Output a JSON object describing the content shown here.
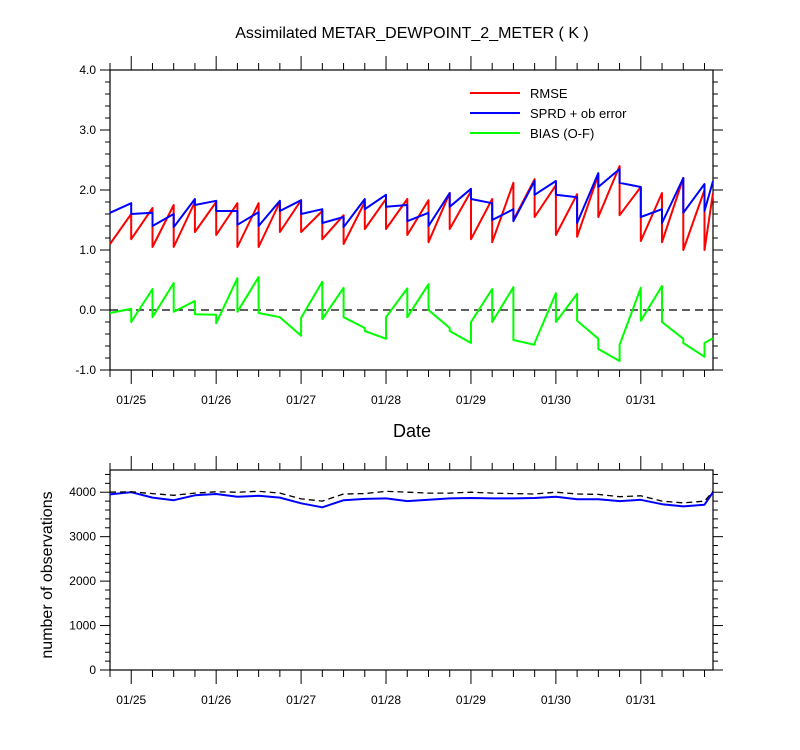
{
  "chart_data": [
    {
      "type": "line",
      "title": "Assimilated METAR_DEWPOINT_2_METER ( K )",
      "xlabel": "Date",
      "ylabel": "",
      "xlim": [
        0,
        7.1
      ],
      "ylim": [
        -1.0,
        4.0
      ],
      "yticks": [
        "-1.0",
        "0.0",
        "1.0",
        "2.0",
        "3.0",
        "4.0"
      ],
      "ytick_values": [
        -1,
        0,
        1,
        2,
        3,
        4
      ],
      "xtick_labels": [
        "01/25",
        "01/26",
        "01/27",
        "01/28",
        "01/29",
        "01/30",
        "01/31"
      ],
      "xtick_values": [
        0.25,
        1.25,
        2.25,
        3.25,
        4.25,
        5.25,
        6.25
      ],
      "x_minor_step": 0.25,
      "legend_position": "top-right",
      "reference_line": {
        "y": 0,
        "style": "dashed",
        "color": "#000000"
      },
      "series": [
        {
          "name": "RMSE",
          "color": "#ff0000",
          "x": [
            0.0,
            0.25,
            0.25,
            0.5,
            0.5,
            0.75,
            0.75,
            1.0,
            1.0,
            1.25,
            1.25,
            1.5,
            1.5,
            1.75,
            1.75,
            2.0,
            2.0,
            2.25,
            2.25,
            2.5,
            2.5,
            2.75,
            2.75,
            3.0,
            3.0,
            3.25,
            3.25,
            3.5,
            3.5,
            3.75,
            3.75,
            4.0,
            4.0,
            4.25,
            4.25,
            4.5,
            4.5,
            4.75,
            4.75,
            5.0,
            5.0,
            5.25,
            5.25,
            5.5,
            5.5,
            5.75,
            5.75,
            6.0,
            6.0,
            6.25,
            6.25,
            6.5,
            6.5,
            6.75,
            6.75,
            7.0,
            7.0,
            7.1
          ],
          "values": [
            1.1,
            1.6,
            1.18,
            1.7,
            1.05,
            1.75,
            1.05,
            1.8,
            1.3,
            1.8,
            1.25,
            1.78,
            1.05,
            1.78,
            1.05,
            1.8,
            1.3,
            1.83,
            1.3,
            1.65,
            1.18,
            1.58,
            1.1,
            1.8,
            1.35,
            1.85,
            1.35,
            1.85,
            1.25,
            1.83,
            1.13,
            1.95,
            1.35,
            1.98,
            1.18,
            1.85,
            1.13,
            2.12,
            1.5,
            2.18,
            1.55,
            2.08,
            1.25,
            1.93,
            1.22,
            2.25,
            1.55,
            2.4,
            1.58,
            2.05,
            1.15,
            1.95,
            1.13,
            2.2,
            1.0,
            2.0,
            1.0,
            1.95
          ]
        },
        {
          "name": "SPRD + ob error",
          "color": "#0000ff",
          "x": [
            0.0,
            0.25,
            0.25,
            0.5,
            0.5,
            0.75,
            0.75,
            1.0,
            1.0,
            1.25,
            1.25,
            1.5,
            1.5,
            1.75,
            1.75,
            2.0,
            2.0,
            2.25,
            2.25,
            2.5,
            2.5,
            2.75,
            2.75,
            3.0,
            3.0,
            3.25,
            3.25,
            3.5,
            3.5,
            3.75,
            3.75,
            4.0,
            4.0,
            4.25,
            4.25,
            4.5,
            4.5,
            4.75,
            4.75,
            5.0,
            5.0,
            5.25,
            5.25,
            5.5,
            5.5,
            5.75,
            5.75,
            6.0,
            6.0,
            6.25,
            6.25,
            6.5,
            6.5,
            6.75,
            6.75,
            7.0,
            7.0,
            7.1
          ],
          "values": [
            1.62,
            1.78,
            1.6,
            1.62,
            1.4,
            1.6,
            1.38,
            1.85,
            1.75,
            1.82,
            1.65,
            1.65,
            1.42,
            1.63,
            1.4,
            1.82,
            1.65,
            1.83,
            1.6,
            1.68,
            1.45,
            1.55,
            1.38,
            1.85,
            1.68,
            1.92,
            1.72,
            1.75,
            1.48,
            1.62,
            1.4,
            1.95,
            1.72,
            2.02,
            1.85,
            1.78,
            1.5,
            1.68,
            1.48,
            2.15,
            1.92,
            2.15,
            1.92,
            1.88,
            1.45,
            2.28,
            2.05,
            2.35,
            2.12,
            2.05,
            1.55,
            1.68,
            1.45,
            2.2,
            1.62,
            2.1,
            1.65,
            2.15
          ]
        },
        {
          "name": "BIAS (O-F)",
          "color": "#00ff00",
          "x": [
            0.0,
            0.25,
            0.25,
            0.5,
            0.5,
            0.75,
            0.75,
            1.0,
            1.0,
            1.25,
            1.25,
            1.5,
            1.5,
            1.75,
            1.75,
            2.0,
            2.0,
            2.25,
            2.25,
            2.5,
            2.5,
            2.75,
            2.75,
            3.0,
            3.0,
            3.25,
            3.25,
            3.5,
            3.5,
            3.75,
            3.75,
            4.0,
            4.0,
            4.25,
            4.25,
            4.5,
            4.5,
            4.75,
            4.75,
            5.0,
            5.0,
            5.25,
            5.25,
            5.5,
            5.5,
            5.75,
            5.75,
            6.0,
            6.0,
            6.25,
            6.25,
            6.5,
            6.5,
            6.75,
            6.75,
            7.0,
            7.0,
            7.1
          ],
          "values": [
            -0.05,
            0.02,
            -0.2,
            0.35,
            -0.12,
            0.45,
            -0.03,
            0.15,
            -0.07,
            -0.08,
            -0.22,
            0.53,
            -0.03,
            0.55,
            -0.05,
            -0.12,
            -0.12,
            -0.43,
            -0.13,
            0.47,
            -0.15,
            0.37,
            -0.12,
            -0.3,
            -0.35,
            -0.48,
            -0.12,
            0.36,
            -0.12,
            0.43,
            0.0,
            -0.3,
            -0.35,
            -0.55,
            -0.2,
            0.35,
            -0.2,
            0.38,
            -0.5,
            -0.58,
            -0.55,
            0.28,
            -0.2,
            0.27,
            -0.18,
            -0.48,
            -0.65,
            -0.85,
            -0.58,
            0.37,
            -0.18,
            0.4,
            -0.2,
            -0.48,
            -0.55,
            -0.78,
            -0.55,
            -0.47
          ]
        }
      ]
    },
    {
      "type": "line",
      "title": "",
      "xlabel": "",
      "ylabel": "number of observations",
      "xlim": [
        0,
        7.1
      ],
      "ylim": [
        0,
        4500
      ],
      "yticks": [
        "0",
        "1000",
        "2000",
        "3000",
        "4000"
      ],
      "ytick_values": [
        0,
        1000,
        2000,
        3000,
        4000
      ],
      "xtick_labels": [
        "01/25",
        "01/26",
        "01/27",
        "01/28",
        "01/29",
        "01/30",
        "01/31"
      ],
      "xtick_values": [
        0.25,
        1.25,
        2.25,
        3.25,
        4.25,
        5.25,
        6.25
      ],
      "x_minor_step": 0.25,
      "series": [
        {
          "name": "",
          "color": "#0000ff",
          "style": "solid",
          "x": [
            0.0,
            0.25,
            0.5,
            0.75,
            1.0,
            1.25,
            1.5,
            1.75,
            2.0,
            2.25,
            2.5,
            2.75,
            3.0,
            3.25,
            3.5,
            3.75,
            4.0,
            4.25,
            4.5,
            4.75,
            5.0,
            5.25,
            5.5,
            5.75,
            6.0,
            6.25,
            6.5,
            6.75,
            7.0,
            7.1
          ],
          "values": [
            3950,
            4000,
            3880,
            3820,
            3930,
            3960,
            3900,
            3920,
            3880,
            3750,
            3660,
            3820,
            3850,
            3860,
            3800,
            3830,
            3860,
            3870,
            3860,
            3860,
            3870,
            3900,
            3840,
            3840,
            3800,
            3830,
            3730,
            3680,
            3720,
            4000
          ]
        },
        {
          "name": "",
          "color": "#000000",
          "style": "dashed",
          "x": [
            0.0,
            0.25,
            0.5,
            0.75,
            1.0,
            1.25,
            1.5,
            1.75,
            2.0,
            2.25,
            2.5,
            2.75,
            3.0,
            3.25,
            3.5,
            3.75,
            4.0,
            4.25,
            4.5,
            4.75,
            5.0,
            5.25,
            5.5,
            5.75,
            6.0,
            6.25,
            6.5,
            6.75,
            7.0,
            7.1
          ],
          "values": [
            4000,
            4010,
            3970,
            3930,
            3980,
            4010,
            4000,
            4020,
            3980,
            3850,
            3800,
            3960,
            3970,
            4020,
            4000,
            3980,
            3980,
            4000,
            3980,
            3970,
            3960,
            4000,
            3960,
            3950,
            3900,
            3920,
            3800,
            3760,
            3800,
            4020
          ]
        }
      ]
    }
  ]
}
